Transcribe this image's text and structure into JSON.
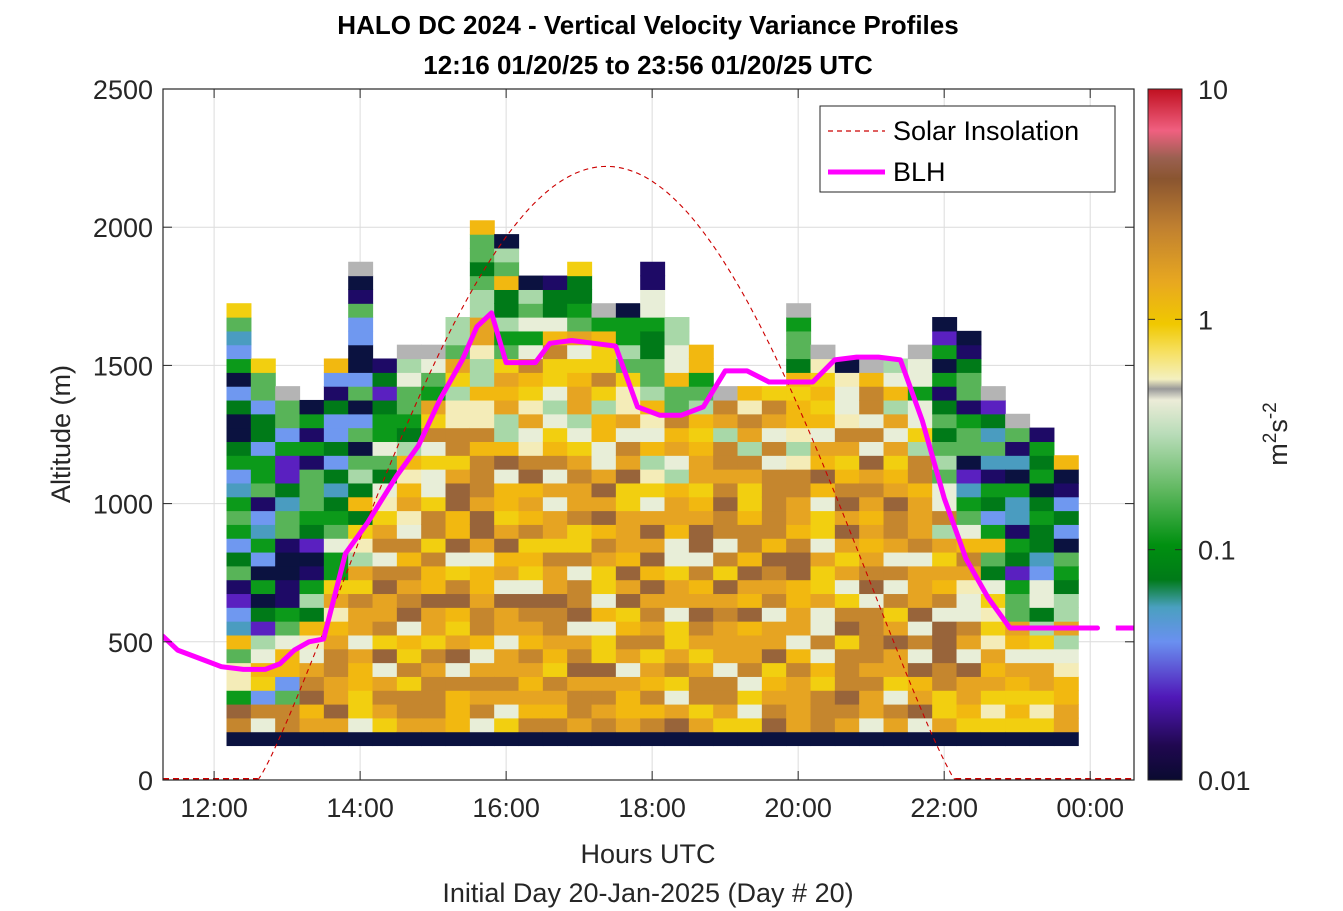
{
  "chart_data": {
    "type": "heatmap",
    "title": "HALO DC 2024 - Vertical Velocity Variance Profiles",
    "subtitle": "12:16 01/20/25 to 23:56 01/20/25  UTC",
    "xlabel": "Hours UTC",
    "xlabel2": "Initial Day 20-Jan-2025 (Day # 20)",
    "ylabel": "Altitude (m)",
    "xlim": [
      11.3,
      24.6
    ],
    "ylim": [
      0,
      2500
    ],
    "x_ticks": [
      12,
      14,
      16,
      18,
      20,
      22,
      24
    ],
    "x_tick_labels": [
      "12:00",
      "14:00",
      "16:00",
      "18:00",
      "20:00",
      "22:00",
      "00:00"
    ],
    "y_ticks": [
      0,
      500,
      1000,
      1500,
      2000,
      2500
    ],
    "y_tick_labels": [
      "0",
      "500",
      "1000",
      "1500",
      "2000",
      "2500"
    ],
    "grid": true,
    "legend_position": "top-right",
    "legend": [
      {
        "label": "Solar Insolation",
        "style": "dashed",
        "color": "#cc0000"
      },
      {
        "label": "BLH",
        "style": "solid",
        "color": "#ff00ff"
      }
    ],
    "colorbar": {
      "label_base": "m",
      "label_sup1": "2",
      "label_mid": "s",
      "label_sup2": "-2",
      "scale": "log",
      "range": [
        0.01,
        10
      ],
      "tick_values": [
        0.01,
        0.1,
        1,
        10
      ],
      "tick_labels": [
        "0.01",
        "0.1",
        "1",
        "10"
      ]
    },
    "heatmap": {
      "bin_hours": 0.3333,
      "bin_meters": 50,
      "first_bin_start_hour": 12.17,
      "n_columns": 35,
      "top_altitude_m": [
        1700,
        1500,
        1400,
        1350,
        1500,
        1850,
        1500,
        1550,
        1550,
        1650,
        2000,
        1950,
        1800,
        1800,
        1850,
        1700,
        1700,
        1850,
        1650,
        1550,
        1400,
        1400,
        1400,
        1700,
        1550,
        1500,
        1500,
        1500,
        1550,
        1650,
        1600,
        1400,
        1300,
        1250,
        1150
      ],
      "note": "variance bins from ~100 m to column top"
    },
    "series": [
      {
        "name": "BLH",
        "x": [
          11.3,
          11.5,
          11.8,
          12.1,
          12.4,
          12.7,
          12.9,
          13.1,
          13.3,
          13.5,
          13.8,
          14.1,
          14.5,
          14.8,
          15.1,
          15.4,
          15.6,
          15.8,
          16.0,
          16.2,
          16.4,
          16.6,
          16.9,
          17.2,
          17.5,
          17.8,
          18.1,
          18.4,
          18.7,
          19.0,
          19.3,
          19.6,
          19.9,
          20.2,
          20.5,
          20.8,
          21.1,
          21.4,
          21.7,
          22.0,
          22.3,
          22.6,
          22.9,
          23.2,
          23.5,
          23.8,
          24.1
        ],
        "y": [
          520,
          470,
          440,
          410,
          400,
          400,
          420,
          470,
          500,
          510,
          820,
          930,
          1100,
          1210,
          1380,
          1520,
          1640,
          1690,
          1510,
          1510,
          1510,
          1580,
          1590,
          1580,
          1570,
          1350,
          1320,
          1320,
          1350,
          1480,
          1480,
          1440,
          1440,
          1440,
          1520,
          1530,
          1530,
          1520,
          1300,
          1020,
          800,
          660,
          550,
          550,
          550,
          550,
          550
        ]
      },
      {
        "name": "Solar Insolation",
        "peak_hour": 17.35,
        "peak_altitude_m": 2220,
        "zero_cross_hours": [
          12.6,
          22.15
        ]
      }
    ]
  }
}
